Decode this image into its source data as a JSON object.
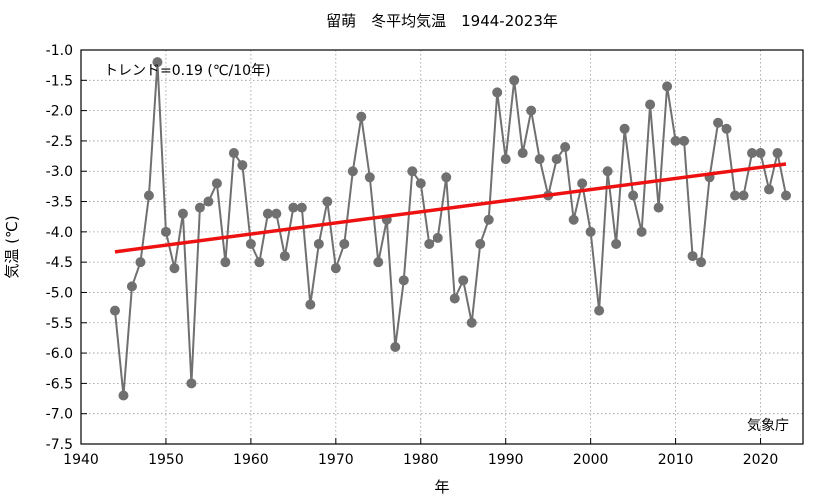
{
  "chart_data": {
    "type": "line",
    "title": "留萌　冬平均気温　1944-2023年",
    "xlabel": "年",
    "ylabel": "気温 (℃)",
    "xlim": [
      1940,
      2025
    ],
    "ylim": [
      -7.5,
      -1.0
    ],
    "grid": true,
    "xticks": [
      1940,
      1950,
      1960,
      1970,
      1980,
      1990,
      2000,
      2010,
      2020
    ],
    "yticks": [
      -1.0,
      -1.5,
      -2.0,
      -2.5,
      -3.0,
      -3.5,
      -4.0,
      -4.5,
      -5.0,
      -5.5,
      -6.0,
      -6.5,
      -7.0,
      -7.5
    ],
    "trend_label": "トレンド=0.19 (℃/10年)",
    "source": "気象庁",
    "series": [
      {
        "color": "#707070",
        "x": [
          1944,
          1945,
          1946,
          1947,
          1948,
          1949,
          1950,
          1951,
          1952,
          1953,
          1954,
          1955,
          1956,
          1957,
          1958,
          1959,
          1960,
          1961,
          1962,
          1963,
          1964,
          1965,
          1966,
          1967,
          1968,
          1969,
          1970,
          1971,
          1972,
          1973,
          1974,
          1975,
          1976,
          1977,
          1978,
          1979,
          1980,
          1981,
          1982,
          1983,
          1984,
          1985,
          1986,
          1987,
          1988,
          1989,
          1990,
          1991,
          1992,
          1993,
          1994,
          1995,
          1996,
          1997,
          1998,
          1999,
          2000,
          2001,
          2002,
          2003,
          2004,
          2005,
          2006,
          2007,
          2008,
          2009,
          2010,
          2011,
          2012,
          2013,
          2014,
          2015,
          2016,
          2017,
          2018,
          2019,
          2020,
          2021,
          2022,
          2023
        ],
        "y": [
          -5.3,
          -6.7,
          -4.9,
          -4.5,
          -3.4,
          -1.2,
          -4.0,
          -4.6,
          -3.7,
          -6.5,
          -3.6,
          -3.5,
          -3.2,
          -4.5,
          -2.7,
          -2.9,
          -4.2,
          -4.5,
          -3.7,
          -3.7,
          -4.4,
          -3.6,
          -3.6,
          -5.2,
          -4.2,
          -3.5,
          -4.6,
          -4.2,
          -3.0,
          -2.1,
          -3.1,
          -4.5,
          -3.8,
          -5.9,
          -4.8,
          -3.0,
          -3.2,
          -4.2,
          -4.1,
          -3.1,
          -5.1,
          -4.8,
          -5.5,
          -4.2,
          -3.8,
          -1.7,
          -2.8,
          -1.5,
          -2.7,
          -2.0,
          -2.8,
          -3.4,
          -2.8,
          -2.6,
          -3.8,
          -3.2,
          -4.0,
          -5.3,
          -3.0,
          -4.2,
          -2.3,
          -3.4,
          -4.0,
          -1.9,
          -3.6,
          -1.6,
          -2.5,
          -2.5,
          -4.4,
          -4.5,
          -3.1,
          -2.2,
          -2.3,
          -3.4,
          -3.4,
          -2.7,
          -2.7,
          -3.3,
          -2.7,
          -3.4
        ]
      }
    ],
    "trend": {
      "color": "#ee1111",
      "x": [
        1944,
        2023
      ],
      "y": [
        -4.33,
        -2.88
      ]
    }
  }
}
